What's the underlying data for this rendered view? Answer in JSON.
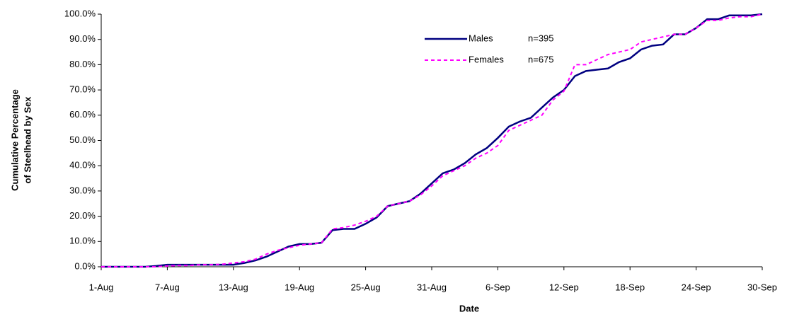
{
  "chart_data": {
    "type": "line",
    "ylabel": [
      "Cumulative Percentage",
      "of Steelhead by Sex"
    ],
    "xlabel": "Date",
    "categories": [
      "1-Aug",
      null,
      null,
      null,
      null,
      null,
      "7-Aug",
      null,
      null,
      null,
      null,
      null,
      "13-Aug",
      null,
      null,
      null,
      null,
      null,
      "19-Aug",
      null,
      null,
      null,
      null,
      null,
      "25-Aug",
      null,
      null,
      null,
      null,
      null,
      "31-Aug",
      null,
      null,
      null,
      null,
      null,
      "6-Sep",
      null,
      null,
      null,
      null,
      null,
      "12-Sep",
      null,
      null,
      null,
      null,
      null,
      "18-Sep",
      null,
      null,
      null,
      null,
      null,
      "24-Sep",
      null,
      null,
      null,
      null,
      null,
      "30-Sep"
    ],
    "series": [
      {
        "name": "Males",
        "sample_label": "n=395",
        "color": "#000080",
        "dashed": false,
        "values": [
          0,
          0,
          0,
          0,
          0,
          0.3,
          0.8,
          0.8,
          0.8,
          0.8,
          0.8,
          0.8,
          0.8,
          1.5,
          2.5,
          4,
          6,
          8,
          9,
          9,
          9.5,
          14.5,
          15,
          15,
          17,
          19.5,
          24,
          25,
          26,
          29,
          33,
          37,
          38.5,
          41,
          44.5,
          47,
          51,
          55.5,
          57.5,
          59,
          63,
          67,
          70,
          75.5,
          77.5,
          78,
          78.5,
          81,
          82.5,
          86,
          87.5,
          88,
          92,
          92,
          94.5,
          98,
          98,
          99.5,
          99.5,
          99.5,
          100
        ]
      },
      {
        "name": "Females",
        "sample_label": "n=675",
        "color": "#ff00ff",
        "dashed": true,
        "values": [
          0,
          0,
          0,
          0,
          0,
          0,
          0.3,
          0.5,
          0.5,
          0.8,
          0.8,
          1,
          1.5,
          2,
          3,
          5,
          6.5,
          7.5,
          8.5,
          9,
          9.5,
          15,
          15.5,
          16.5,
          18,
          20,
          24,
          25,
          26,
          28.5,
          32,
          36,
          38,
          40,
          43,
          45,
          48,
          54,
          56,
          58,
          60,
          66,
          69.5,
          80,
          80,
          82,
          84,
          85,
          86,
          89,
          90,
          91,
          92,
          92,
          94.5,
          97.5,
          97.5,
          98.5,
          99,
          99,
          100
        ]
      }
    ],
    "ylim": [
      0,
      100
    ],
    "yticks": [
      {
        "value": 0,
        "label": "0.0%"
      },
      {
        "value": 10,
        "label": "10.0%"
      },
      {
        "value": 20,
        "label": "20.0%"
      },
      {
        "value": 30,
        "label": "30.0%"
      },
      {
        "value": 40,
        "label": "40.0%"
      },
      {
        "value": 50,
        "label": "50.0%"
      },
      {
        "value": 60,
        "label": "60.0%"
      },
      {
        "value": 70,
        "label": "70.0%"
      },
      {
        "value": 80,
        "label": "80.0%"
      },
      {
        "value": 90,
        "label": "90.0%"
      },
      {
        "value": 100,
        "label": "100.0%"
      }
    ],
    "grid": false
  }
}
